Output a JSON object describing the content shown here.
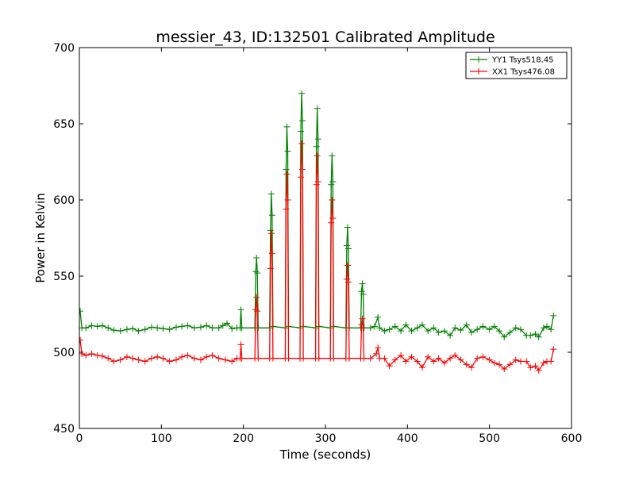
{
  "chart_data": {
    "type": "line",
    "title": "messier_43, ID:132501 Calibrated Amplitude",
    "xlabel": "Time (seconds)",
    "ylabel": "Power in Kelvin",
    "xlim": [
      0,
      600
    ],
    "ylim": [
      450,
      700
    ],
    "xticks": [
      0,
      100,
      200,
      300,
      400,
      500,
      600
    ],
    "yticks": [
      450,
      500,
      550,
      600,
      650,
      700
    ],
    "xtick_labels": [
      "0",
      "100",
      "200",
      "300",
      "400",
      "500",
      "600"
    ],
    "ytick_labels": [
      "450",
      "500",
      "550",
      "600",
      "650",
      "700"
    ],
    "grid": false,
    "legend_position": "top-right",
    "marker": "+",
    "series": [
      {
        "name": "YY1 Tsys518.45",
        "color": "#008000",
        "points": [
          [
            1,
            527
          ],
          [
            3,
            516
          ],
          [
            8,
            516
          ],
          [
            15,
            517.5
          ],
          [
            22,
            517
          ],
          [
            28,
            517.5
          ],
          [
            35,
            516
          ],
          [
            42,
            514.5
          ],
          [
            50,
            514
          ],
          [
            58,
            515
          ],
          [
            65,
            515.5
          ],
          [
            72,
            514
          ],
          [
            80,
            515
          ],
          [
            88,
            516.5
          ],
          [
            95,
            516
          ],
          [
            102,
            515.5
          ],
          [
            110,
            515
          ],
          [
            118,
            516.5
          ],
          [
            125,
            517
          ],
          [
            132,
            517.5
          ],
          [
            140,
            516
          ],
          [
            148,
            516.5
          ],
          [
            155,
            517.5
          ],
          [
            162,
            516
          ],
          [
            170,
            516
          ],
          [
            175,
            517.5
          ],
          [
            180,
            519
          ],
          [
            186,
            515.5
          ],
          [
            192,
            516
          ],
          [
            196,
            516
          ],
          [
            197,
            528
          ],
          [
            198,
            516
          ],
          [
            214,
            516
          ],
          [
            215,
            553
          ],
          [
            216,
            562
          ],
          [
            217,
            552
          ],
          [
            218,
            516
          ],
          [
            232,
            516
          ],
          [
            233,
            580
          ],
          [
            234,
            604
          ],
          [
            235,
            590
          ],
          [
            236,
            517
          ],
          [
            251,
            516
          ],
          [
            252,
            620
          ],
          [
            253,
            648
          ],
          [
            254,
            632
          ],
          [
            255,
            517
          ],
          [
            269,
            516
          ],
          [
            270,
            645
          ],
          [
            271,
            670
          ],
          [
            272,
            652
          ],
          [
            273,
            517
          ],
          [
            288,
            516
          ],
          [
            289,
            635
          ],
          [
            290,
            660
          ],
          [
            291,
            640
          ],
          [
            292,
            517
          ],
          [
            306,
            516
          ],
          [
            307,
            610
          ],
          [
            308,
            629
          ],
          [
            309,
            612
          ],
          [
            310,
            517
          ],
          [
            325,
            516
          ],
          [
            326,
            570
          ],
          [
            327,
            582
          ],
          [
            328,
            568
          ],
          [
            329,
            516
          ],
          [
            343,
            516
          ],
          [
            344,
            540
          ],
          [
            345,
            545
          ],
          [
            346,
            538
          ],
          [
            347,
            516
          ],
          [
            355,
            516
          ],
          [
            360,
            517
          ],
          [
            364,
            523
          ],
          [
            366,
            516
          ],
          [
            372,
            514
          ],
          [
            378,
            515
          ],
          [
            385,
            517
          ],
          [
            392,
            514
          ],
          [
            398,
            518
          ],
          [
            405,
            514
          ],
          [
            412,
            516
          ],
          [
            418,
            518
          ],
          [
            425,
            514
          ],
          [
            432,
            516
          ],
          [
            438,
            513
          ],
          [
            445,
            514
          ],
          [
            452,
            511
          ],
          [
            458,
            516
          ],
          [
            465,
            514.5
          ],
          [
            472,
            518
          ],
          [
            478,
            513
          ],
          [
            485,
            515
          ],
          [
            492,
            517
          ],
          [
            500,
            515
          ],
          [
            506,
            517
          ],
          [
            512,
            514
          ],
          [
            518,
            510
          ],
          [
            525,
            513
          ],
          [
            532,
            516
          ],
          [
            538,
            515
          ],
          [
            545,
            511
          ],
          [
            550,
            511
          ],
          [
            556,
            512
          ],
          [
            560,
            510
          ],
          [
            566,
            516
          ],
          [
            570,
            517
          ],
          [
            575,
            515
          ],
          [
            578,
            524
          ]
        ]
      },
      {
        "name": "XX1 Tsys476.08",
        "color": "#ff0000",
        "points": [
          [
            1,
            508
          ],
          [
            3,
            499
          ],
          [
            8,
            498
          ],
          [
            15,
            499
          ],
          [
            22,
            498
          ],
          [
            28,
            497.5
          ],
          [
            35,
            496
          ],
          [
            42,
            494
          ],
          [
            50,
            495
          ],
          [
            58,
            497
          ],
          [
            65,
            496
          ],
          [
            72,
            495
          ],
          [
            80,
            494
          ],
          [
            88,
            496
          ],
          [
            95,
            497
          ],
          [
            102,
            496
          ],
          [
            110,
            494
          ],
          [
            118,
            495
          ],
          [
            125,
            497
          ],
          [
            132,
            498
          ],
          [
            140,
            496
          ],
          [
            148,
            495
          ],
          [
            155,
            497
          ],
          [
            162,
            498
          ],
          [
            170,
            496
          ],
          [
            178,
            495
          ],
          [
            186,
            494
          ],
          [
            192,
            496
          ],
          [
            196,
            496
          ],
          [
            197,
            505
          ],
          [
            198,
            496
          ],
          [
            214,
            496
          ],
          [
            215,
            528
          ],
          [
            216,
            536
          ],
          [
            217,
            527
          ],
          [
            218,
            496
          ],
          [
            232,
            496
          ],
          [
            233,
            555
          ],
          [
            234,
            578
          ],
          [
            235,
            565
          ],
          [
            236,
            496
          ],
          [
            251,
            496
          ],
          [
            252,
            594
          ],
          [
            253,
            617
          ],
          [
            254,
            600
          ],
          [
            255,
            496
          ],
          [
            269,
            496
          ],
          [
            270,
            615
          ],
          [
            271,
            637
          ],
          [
            272,
            620
          ],
          [
            273,
            496
          ],
          [
            288,
            496
          ],
          [
            289,
            610
          ],
          [
            290,
            629
          ],
          [
            291,
            612
          ],
          [
            292,
            496
          ],
          [
            306,
            496
          ],
          [
            307,
            585
          ],
          [
            308,
            600
          ],
          [
            309,
            588
          ],
          [
            310,
            496
          ],
          [
            325,
            496
          ],
          [
            326,
            548
          ],
          [
            327,
            557
          ],
          [
            328,
            546
          ],
          [
            329,
            496
          ],
          [
            343,
            496
          ],
          [
            344,
            518
          ],
          [
            345,
            522
          ],
          [
            346,
            516
          ],
          [
            347,
            496
          ],
          [
            355,
            496
          ],
          [
            362,
            499
          ],
          [
            364,
            503
          ],
          [
            366,
            496
          ],
          [
            372,
            496
          ],
          [
            378,
            491
          ],
          [
            385,
            495
          ],
          [
            392,
            498
          ],
          [
            398,
            494
          ],
          [
            405,
            497
          ],
          [
            412,
            494
          ],
          [
            418,
            490
          ],
          [
            425,
            497
          ],
          [
            432,
            494
          ],
          [
            438,
            496
          ],
          [
            445,
            493
          ],
          [
            452,
            496
          ],
          [
            458,
            498
          ],
          [
            465,
            495
          ],
          [
            472,
            492
          ],
          [
            478,
            490
          ],
          [
            485,
            496
          ],
          [
            492,
            497
          ],
          [
            500,
            495
          ],
          [
            506,
            493
          ],
          [
            512,
            492
          ],
          [
            518,
            489
          ],
          [
            525,
            492
          ],
          [
            532,
            495
          ],
          [
            538,
            494
          ],
          [
            545,
            494
          ],
          [
            550,
            490
          ],
          [
            556,
            491
          ],
          [
            560,
            488
          ],
          [
            566,
            493
          ],
          [
            570,
            494
          ],
          [
            575,
            494
          ],
          [
            578,
            502
          ]
        ]
      }
    ]
  }
}
